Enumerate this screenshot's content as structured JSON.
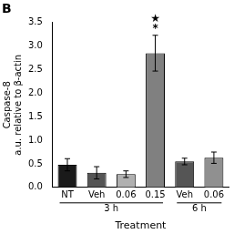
{
  "chart_data": {
    "type": "bar",
    "title": "B",
    "categories": [
      "NT",
      "Veh",
      "0.06",
      "0.15",
      "Veh",
      "0.06"
    ],
    "values": [
      0.48,
      0.31,
      0.28,
      2.85,
      0.55,
      0.63
    ],
    "errors": [
      0.13,
      0.13,
      0.07,
      0.38,
      0.07,
      0.12
    ],
    "colors": [
      "#1a1a1a",
      "#555555",
      "#b0b0b0",
      "#808080",
      "#555555",
      "#909090"
    ],
    "ylabel": [
      "Caspase-8",
      "a.u. relative to β-actin"
    ],
    "xlabel": "Treatment",
    "ylim": [
      0,
      3.5
    ],
    "yticks": [
      {
        "value": 0,
        "label": "0.0"
      },
      0.5,
      {
        "value": 1.0,
        "label": "1.0"
      },
      1.5,
      {
        "value": 2.0,
        "label": "2.0"
      },
      2.5,
      {
        "value": 3.0,
        "label": "3.0"
      },
      3.5
    ],
    "grid": false,
    "annotations": [
      {
        "text": "*",
        "bar_index": 3
      },
      {
        "text": "★",
        "bar_index": 3
      }
    ],
    "groups": [
      {
        "label": "3 h",
        "size": 4
      },
      {
        "label": "6 h",
        "size": 2
      }
    ]
  }
}
